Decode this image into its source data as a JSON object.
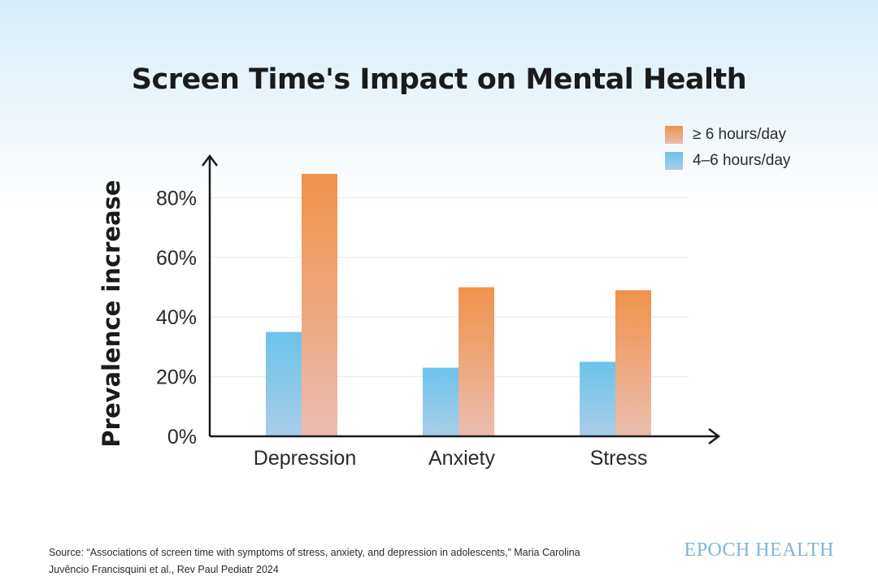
{
  "chart_data": {
    "type": "bar",
    "title": "Screen Time's Impact on Mental Health",
    "ylabel": "Prevalence increase",
    "xlabel": "",
    "categories": [
      "Depression",
      "Anxiety",
      "Stress"
    ],
    "series": [
      {
        "name": "4–6 hours/day",
        "values": [
          35,
          23,
          25
        ],
        "color_top": "#6cc3ec",
        "color_bottom": "#a9cde8"
      },
      {
        "name": "≥ 6 hours/day",
        "values": [
          88,
          50,
          49
        ],
        "color_top": "#f0924a",
        "color_bottom": "#ebbdb0"
      }
    ],
    "legend_order": [
      "≥ 6 hours/day",
      "4–6 hours/day"
    ],
    "yticks": [
      0,
      20,
      40,
      60,
      80
    ],
    "ytick_labels": [
      "0%",
      "20%",
      "40%",
      "60%",
      "80%"
    ],
    "ylim": [
      0,
      100
    ],
    "grid": true,
    "legend_position": "top-right"
  },
  "footer": {
    "source_line1": "Source: “Associations of screen time with symptoms of stress, anxiety, and depression in adolescents,” Maria Carolina",
    "source_line2": "Juvêncio Francisquini et al., Rev Paul Pediatr 2024",
    "logo": "EPOCH HEALTH"
  }
}
